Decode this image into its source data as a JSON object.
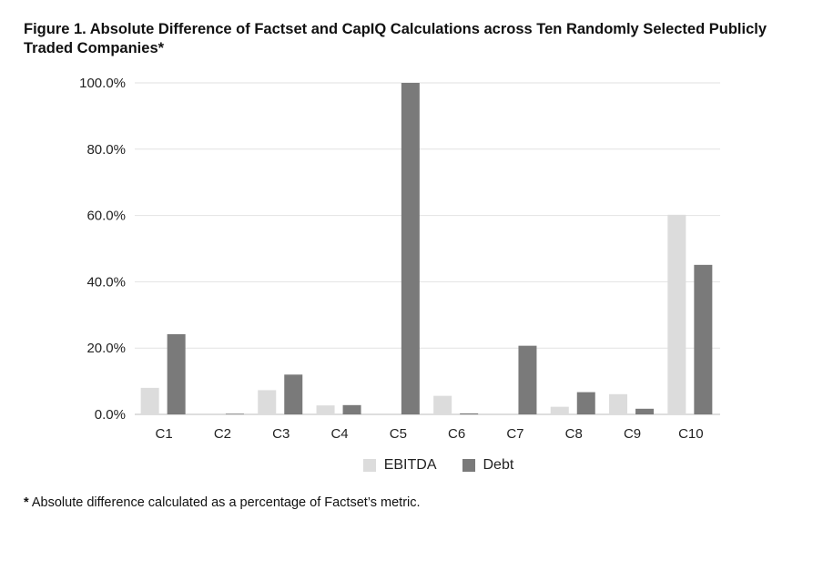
{
  "figure": {
    "title": "Figure 1.  Absolute Difference of Factset and CapIQ Calculations across Ten Randomly Selected Publicly Traded Companies*",
    "footnote_mark": "*",
    "footnote_text": " Absolute difference calculated as a percentage of Factset’s metric."
  },
  "chart_data": {
    "type": "bar",
    "title": "Figure 1.  Absolute Difference of Factset and CapIQ Calculations across Ten Randomly Selected Publicly Traded Companies*",
    "xlabel": "",
    "ylabel": "",
    "categories": [
      "C1",
      "C2",
      "C3",
      "C4",
      "C5",
      "C6",
      "C7",
      "C8",
      "C9",
      "C10"
    ],
    "series": [
      {
        "name": "EBITDA",
        "color": "#dcdcdc",
        "values": [
          8.0,
          0.0,
          7.3,
          2.7,
          0.0,
          5.6,
          0.0,
          2.3,
          6.1,
          60.2
        ]
      },
      {
        "name": "Debt",
        "color": "#7a7a7a",
        "values": [
          24.2,
          0.2,
          12.0,
          2.8,
          100.0,
          0.3,
          20.7,
          6.7,
          1.7,
          45.1
        ]
      }
    ],
    "ylim": [
      0,
      100
    ],
    "yticks": [
      0,
      20,
      40,
      60,
      80,
      100
    ],
    "ytick_labels": [
      "0.0%",
      "20.0%",
      "40.0%",
      "60.0%",
      "80.0%",
      "100.0%"
    ],
    "grid": true,
    "legend_position": "bottom"
  }
}
